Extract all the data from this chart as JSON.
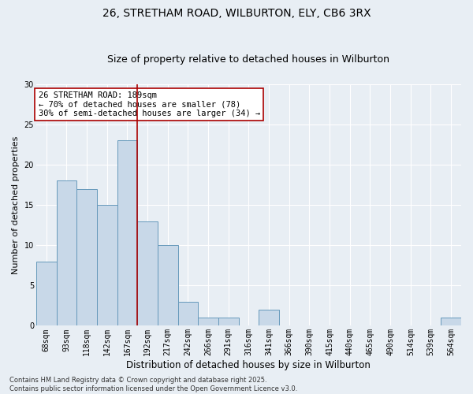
{
  "title1": "26, STRETHAM ROAD, WILBURTON, ELY, CB6 3RX",
  "title2": "Size of property relative to detached houses in Wilburton",
  "xlabel": "Distribution of detached houses by size in Wilburton",
  "ylabel": "Number of detached properties",
  "categories": [
    "68sqm",
    "93sqm",
    "118sqm",
    "142sqm",
    "167sqm",
    "192sqm",
    "217sqm",
    "242sqm",
    "266sqm",
    "291sqm",
    "316sqm",
    "341sqm",
    "366sqm",
    "390sqm",
    "415sqm",
    "440sqm",
    "465sqm",
    "490sqm",
    "514sqm",
    "539sqm",
    "564sqm"
  ],
  "values": [
    8,
    18,
    17,
    15,
    23,
    13,
    10,
    3,
    1,
    1,
    0,
    2,
    0,
    0,
    0,
    0,
    0,
    0,
    0,
    0,
    1
  ],
  "bar_color": "#c8d8e8",
  "bar_edge_color": "#6699bb",
  "vline_color": "#aa0000",
  "annotation_text": "26 STRETHAM ROAD: 189sqm\n← 70% of detached houses are smaller (78)\n30% of semi-detached houses are larger (34) →",
  "annotation_box_color": "white",
  "annotation_box_edge_color": "#aa0000",
  "ylim": [
    0,
    30
  ],
  "yticks": [
    0,
    5,
    10,
    15,
    20,
    25,
    30
  ],
  "background_color": "#e8eef4",
  "grid_color": "white",
  "footer_text": "Contains HM Land Registry data © Crown copyright and database right 2025.\nContains public sector information licensed under the Open Government Licence v3.0.",
  "title_fontsize": 10,
  "subtitle_fontsize": 9,
  "xlabel_fontsize": 8.5,
  "ylabel_fontsize": 8,
  "annotation_fontsize": 7.5,
  "tick_fontsize": 7,
  "footer_fontsize": 6
}
